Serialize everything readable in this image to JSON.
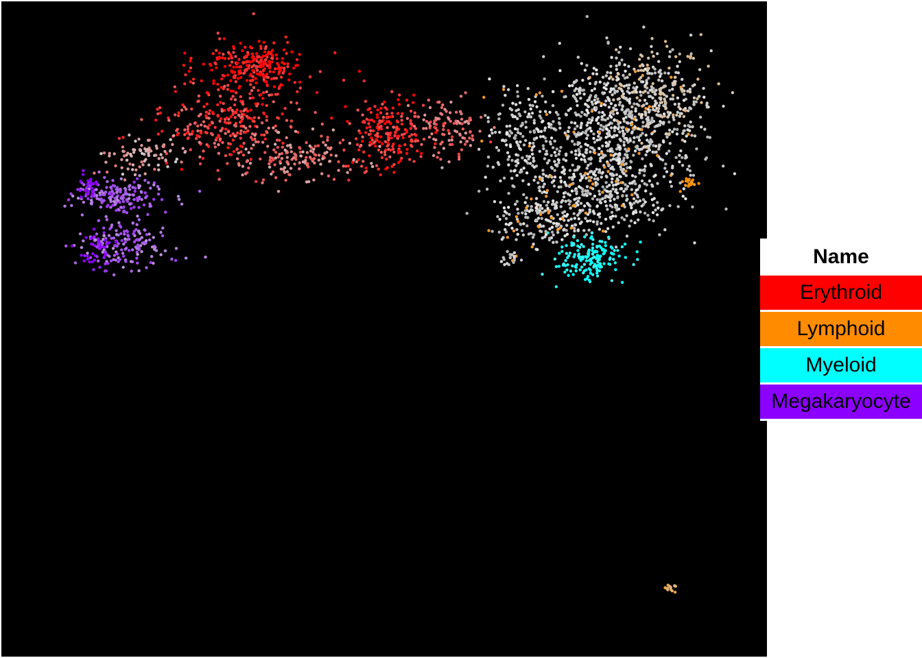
{
  "legend": {
    "title": "Name",
    "items": [
      {
        "label": "Erythroid",
        "color": "#ff0000"
      },
      {
        "label": "Lymphoid",
        "color": "#ff8c00"
      },
      {
        "label": "Myeloid",
        "color": "#00ffff"
      },
      {
        "label": "Megakaryocyte",
        "color": "#8b00ff"
      }
    ]
  },
  "chart_data": {
    "type": "scatter",
    "title": "",
    "xlabel": "",
    "ylabel": "",
    "grid": false,
    "background": "#000000",
    "legend_placement": "right",
    "neutral_color": "#cfcfcf",
    "series": [
      {
        "name": "Erythroid",
        "color": "#ff0000"
      },
      {
        "name": "Lymphoid",
        "color": "#ff8c00"
      },
      {
        "name": "Myeloid",
        "color": "#00ffff"
      },
      {
        "name": "Megakaryocyte",
        "color": "#8b00ff"
      }
    ]
  }
}
